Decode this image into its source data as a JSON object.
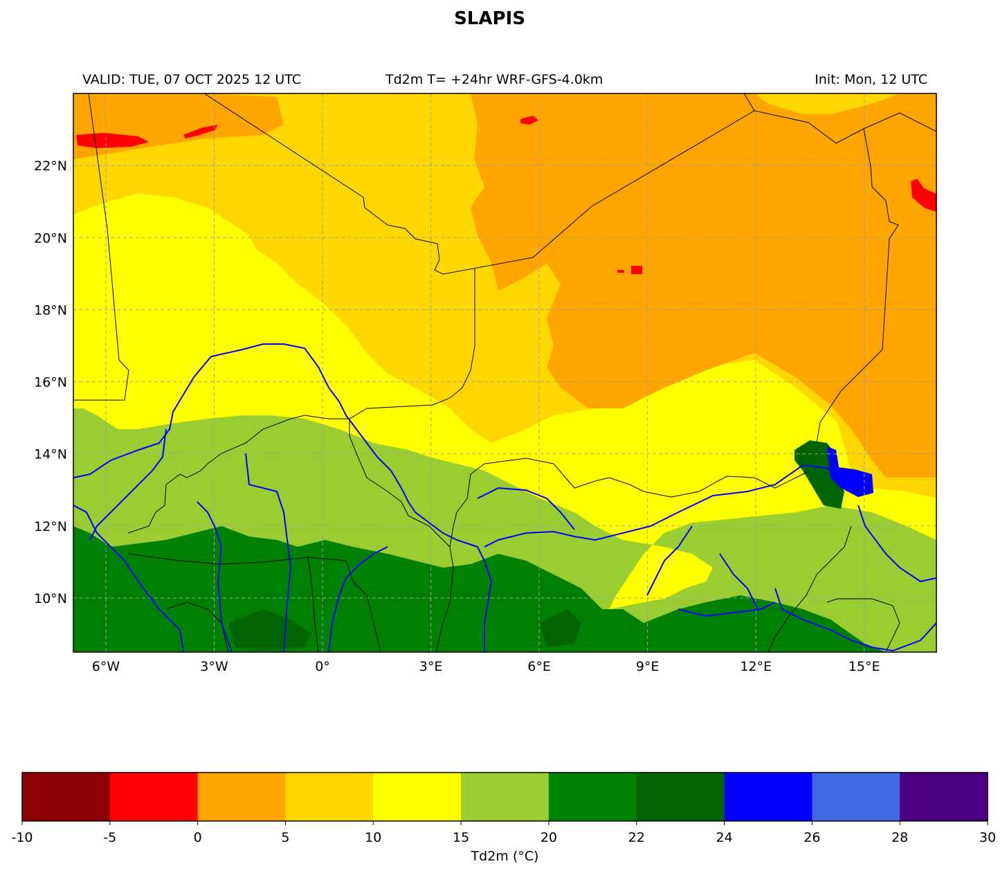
{
  "title": "SLAPIS",
  "header": {
    "valid": "VALID: TUE, 07 OCT 2025 12 UTC",
    "center": "Td2m T= +24hr WRF-GFS-4.0km",
    "init": "Init: Mon, 12 UTC"
  },
  "map": {
    "extent": {
      "lon_min": -6.9,
      "lon_max": 17.0,
      "lat_min": 8.5,
      "lat_max": 24.0
    },
    "lon_ticks": [
      {
        "value": -6,
        "label": "6°W"
      },
      {
        "value": -3,
        "label": "3°W"
      },
      {
        "value": 0,
        "label": "0°"
      },
      {
        "value": 3,
        "label": "3°E"
      },
      {
        "value": 6,
        "label": "6°E"
      },
      {
        "value": 9,
        "label": "9°E"
      },
      {
        "value": 12,
        "label": "12°E"
      },
      {
        "value": 15,
        "label": "15°E"
      }
    ],
    "lat_ticks": [
      {
        "value": 22,
        "label": "22°N"
      },
      {
        "value": 20,
        "label": "20°N"
      },
      {
        "value": 18,
        "label": "18°N"
      },
      {
        "value": 16,
        "label": "16°N"
      },
      {
        "value": 14,
        "label": "14°N"
      },
      {
        "value": 12,
        "label": "12°N"
      },
      {
        "value": 10,
        "label": "10°N"
      }
    ],
    "gridlines": true
  },
  "colorbar": {
    "label": "Td2m (°C)",
    "bins": [
      {
        "from": -10,
        "to": -5,
        "color": "#8b0000"
      },
      {
        "from": -5,
        "to": 0,
        "color": "#ff0000"
      },
      {
        "from": 0,
        "to": 5,
        "color": "#ffa500"
      },
      {
        "from": 5,
        "to": 10,
        "color": "#ffd700"
      },
      {
        "from": 10,
        "to": 15,
        "color": "#ffff00"
      },
      {
        "from": 15,
        "to": 20,
        "color": "#9acd32"
      },
      {
        "from": 20,
        "to": 22,
        "color": "#008000"
      },
      {
        "from": 22,
        "to": 24,
        "color": "#006400"
      },
      {
        "from": 24,
        "to": 26,
        "color": "#0000ff"
      },
      {
        "from": 26,
        "to": 28,
        "color": "#4169e1"
      },
      {
        "from": 28,
        "to": 30,
        "color": "#4b0082"
      }
    ],
    "tick_labels": [
      "-10",
      "-5",
      "0",
      "5",
      "10",
      "15",
      "20",
      "22",
      "24",
      "26",
      "28",
      "30"
    ]
  },
  "colors": {
    "border": "#000000",
    "river": "#0000ff",
    "grid": "#a0a0a0"
  }
}
